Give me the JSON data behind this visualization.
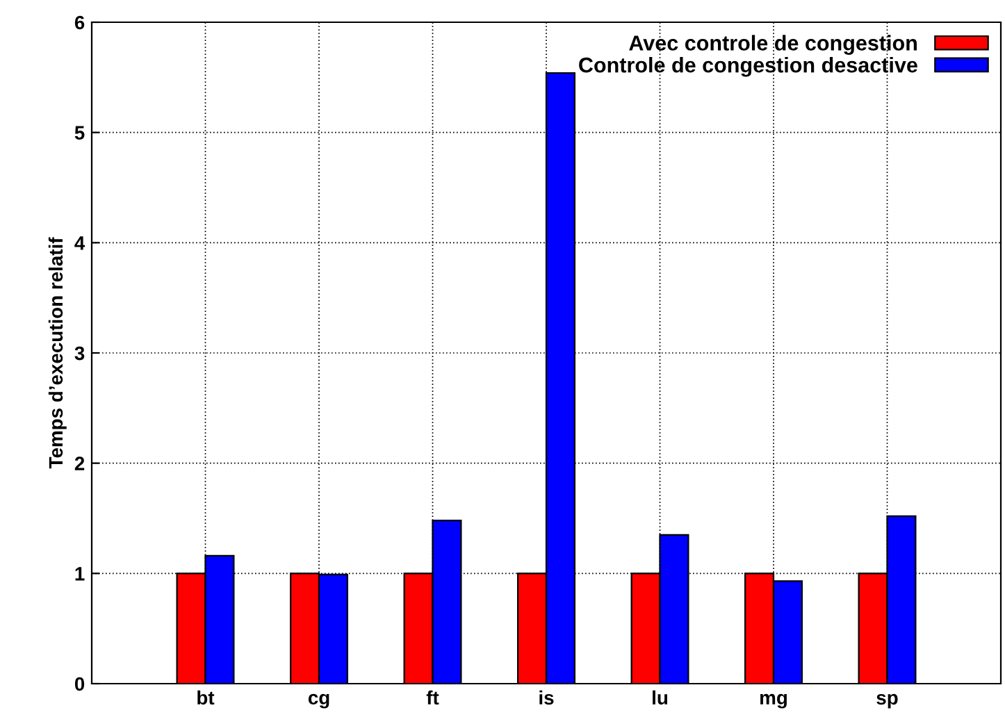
{
  "chart_data": {
    "type": "bar",
    "ylabel": "Temps d’execution relatif",
    "categories": [
      "bt",
      "cg",
      "ft",
      "is",
      "lu",
      "mg",
      "sp"
    ],
    "series": [
      {
        "name": "Avec controle de congestion",
        "color": "#ff0000",
        "values": [
          1,
          1,
          1,
          1,
          1,
          1,
          1
        ]
      },
      {
        "name": "Controle de congestion desactive",
        "color": "#0000ff",
        "values": [
          1.16,
          0.99,
          1.48,
          5.54,
          1.35,
          0.93,
          1.52
        ]
      }
    ],
    "ylim": [
      0,
      6
    ],
    "yticks": [
      0,
      1,
      2,
      3,
      4,
      5,
      6
    ],
    "grid": true,
    "legend": "top right"
  }
}
